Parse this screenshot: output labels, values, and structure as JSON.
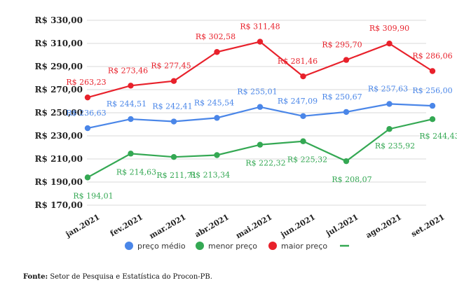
{
  "chart_data": {
    "type": "line",
    "categories": [
      "jan.2021",
      "fev.2021",
      "mar.2021",
      "abr.2021",
      "mai.2021",
      "jun.2021",
      "jul.2021",
      "ago.2021",
      "set.2021"
    ],
    "ylim": [
      170,
      330
    ],
    "yticks": [
      170,
      190,
      210,
      230,
      250,
      270,
      290,
      310,
      330
    ],
    "ytick_labels": [
      "R$ 170,00",
      "R$ 190,00",
      "R$ 210,00",
      "R$ 230,00",
      "R$ 250,00",
      "R$ 270,00",
      "R$ 290,00",
      "R$ 310,00",
      "R$ 330,00"
    ],
    "grid": "horizontal",
    "legend_position": "bottom",
    "series": [
      {
        "name": "preço médio",
        "color": "#4a86e8",
        "values": [
          236.63,
          244.51,
          242.41,
          245.54,
          255.01,
          247.09,
          250.67,
          257.63,
          256.0
        ],
        "labels": [
          "R$ 236,63",
          "R$ 244,51",
          "R$ 242,41",
          "R$ 245,54",
          "R$ 255,01",
          "R$ 247,09",
          "R$ 250,67",
          "R$ 257,63",
          "R$ 256,00"
        ]
      },
      {
        "name": "menor preço",
        "color": "#34a853",
        "values": [
          194.01,
          214.63,
          211.71,
          213.34,
          222.32,
          225.32,
          208.07,
          235.92,
          244.43
        ],
        "labels": [
          "R$ 194,01",
          "R$ 214,63",
          "R$ 211,71",
          "R$ 213,34",
          "R$ 222,32",
          "R$ 225,32",
          "R$ 208,07",
          "R$ 235,92",
          "R$ 244,43"
        ]
      },
      {
        "name": "maior preço",
        "color": "#e8212b",
        "values": [
          263.23,
          273.46,
          277.45,
          302.58,
          311.48,
          281.46,
          295.7,
          309.9,
          286.06
        ],
        "labels": [
          "R$ 263,23",
          "R$ 273,46",
          "R$ 277,45",
          "R$ 302,58",
          "R$ 311,48",
          "R$ 281,46",
          "R$ 295,70",
          "R$ 309,90",
          "R$ 286,06"
        ]
      }
    ],
    "legend_extra_color": "#34a853"
  },
  "source": {
    "label": "Fonte:",
    "text": " Setor de Pesquisa e Estatística do Procon-PB."
  }
}
